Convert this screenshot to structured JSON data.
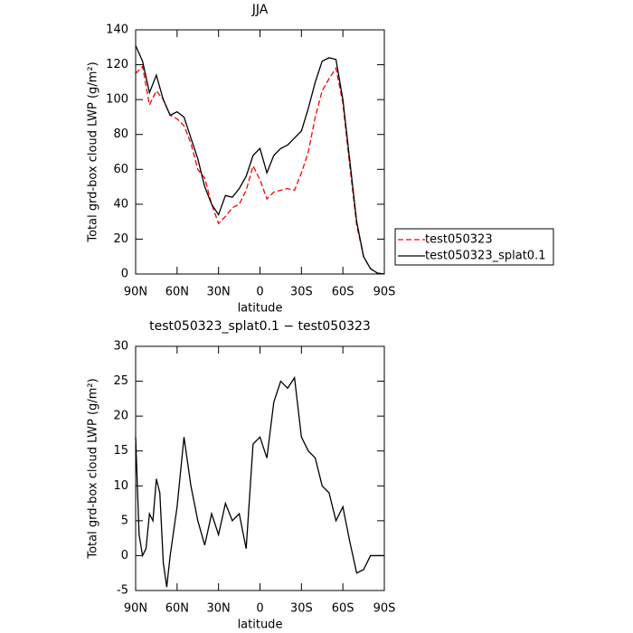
{
  "chart_data": [
    {
      "type": "line",
      "title": "JJA",
      "xlabel": "latitude",
      "ylabel": "Total grd-box cloud LWP (g/m²)",
      "x": [
        90,
        85,
        80,
        75,
        70,
        65,
        60,
        55,
        50,
        45,
        40,
        35,
        30,
        25,
        20,
        15,
        10,
        5,
        0,
        -5,
        -10,
        -15,
        -20,
        -25,
        -30,
        -35,
        -40,
        -45,
        -50,
        -55,
        -60,
        -65,
        -70,
        -75,
        -80,
        -85,
        -90
      ],
      "series": [
        {
          "name": "test050323",
          "color": "#ff0000",
          "dash": true,
          "values": [
            115,
            119,
            97,
            105,
            100,
            91,
            89,
            85,
            75,
            60,
            55,
            40,
            29,
            33,
            38,
            40,
            48,
            62,
            54,
            43,
            47,
            48,
            49,
            48,
            58,
            70,
            90,
            105,
            112,
            118,
            98,
            62,
            28,
            10,
            3,
            0.5,
            0
          ]
        },
        {
          "name": "test050323_splat0.1",
          "color": "#000000",
          "dash": false,
          "values": [
            131,
            122,
            104,
            114,
            100,
            91,
            93,
            90,
            78,
            66,
            50,
            40,
            34,
            45,
            44,
            49,
            56,
            68,
            72,
            58,
            68,
            72,
            74,
            78,
            82,
            95,
            110,
            122,
            124,
            123,
            100,
            65,
            30,
            10,
            3,
            0.5,
            0
          ]
        }
      ],
      "xlim": [
        90,
        -90
      ],
      "xticks": [
        {
          "value": 90,
          "label": "90N"
        },
        {
          "value": 60,
          "label": "60N"
        },
        {
          "value": 30,
          "label": "30N"
        },
        0,
        {
          "value": -30,
          "label": "30S"
        },
        {
          "value": -60,
          "label": "60S"
        },
        {
          "value": -90,
          "label": "90S"
        }
      ],
      "ylim": [
        0,
        140
      ],
      "yticks": [
        0,
        20,
        40,
        60,
        80,
        100,
        120,
        140
      ],
      "legend": "outside-right"
    },
    {
      "type": "line",
      "title": "test050323_splat0.1 − test050323",
      "xlabel": "latitude",
      "ylabel": "Total grd-box cloud LWP (g/m²)",
      "x": [
        90,
        87.5,
        85,
        82.5,
        80,
        77.5,
        75,
        72.5,
        70,
        67.5,
        65,
        60,
        55,
        50,
        45,
        40,
        35,
        30,
        25,
        20,
        15,
        10,
        5,
        0,
        -5,
        -10,
        -15,
        -20,
        -25,
        -30,
        -35,
        -40,
        -45,
        -50,
        -55,
        -60,
        -65,
        -70,
        -75,
        -80,
        -85,
        -90
      ],
      "series": [
        {
          "color": "#000000",
          "dash": false,
          "values": [
            17,
            3,
            0,
            1,
            6,
            5,
            11,
            9,
            -1,
            -4.5,
            0,
            7,
            17,
            10,
            5,
            1.5,
            6,
            3,
            7.5,
            5,
            6,
            1,
            16,
            17,
            14,
            22,
            25,
            24,
            25.5,
            17,
            15,
            14,
            10,
            9,
            5,
            7,
            2,
            -2.5,
            -2,
            0,
            0,
            0
          ]
        }
      ],
      "xlim": [
        90,
        -90
      ],
      "xticks": [
        {
          "value": 90,
          "label": "90N"
        },
        {
          "value": 60,
          "label": "60N"
        },
        {
          "value": 30,
          "label": "30N"
        },
        0,
        {
          "value": -30,
          "label": "30S"
        },
        {
          "value": -60,
          "label": "60S"
        },
        {
          "value": -90,
          "label": "90S"
        }
      ],
      "ylim": [
        -5,
        30
      ],
      "yticks": [
        -5,
        0,
        5,
        10,
        15,
        20,
        25,
        30
      ]
    }
  ]
}
